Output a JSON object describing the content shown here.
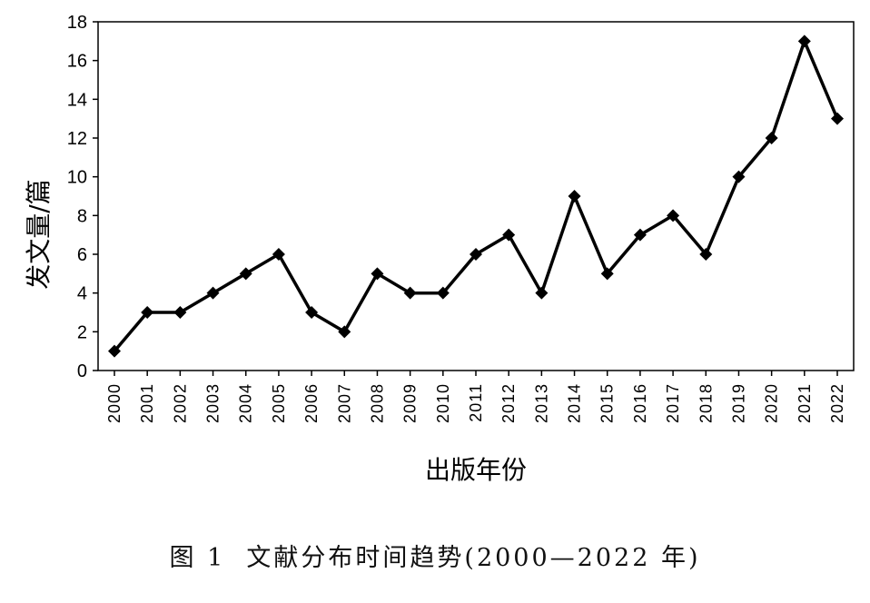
{
  "chart_data": {
    "type": "line",
    "title": "",
    "xlabel": "出版年份",
    "ylabel": "发文量/篇",
    "ylim": [
      0,
      18
    ],
    "yticks": [
      "0",
      "2",
      "4",
      "6",
      "8",
      "10",
      "12",
      "14",
      "16",
      "18"
    ],
    "categories": [
      "2000",
      "2001",
      "2002",
      "2003",
      "2004",
      "2005",
      "2006",
      "2007",
      "2008",
      "2009",
      "2010",
      "2011",
      "2012",
      "2013",
      "2014",
      "2015",
      "2016",
      "2017",
      "2018",
      "2019",
      "2020",
      "2021",
      "2022"
    ],
    "series": [
      {
        "values": [
          1,
          3,
          3,
          4,
          5,
          6,
          3,
          2,
          5,
          4,
          4,
          6,
          7,
          4,
          9,
          5,
          7,
          8,
          6,
          10,
          12,
          17,
          13
        ]
      }
    ],
    "grid": false,
    "line_color": "#000000",
    "marker": "diamond"
  },
  "caption": "图 1  文献分布时间趋势(2000—2022 年)"
}
